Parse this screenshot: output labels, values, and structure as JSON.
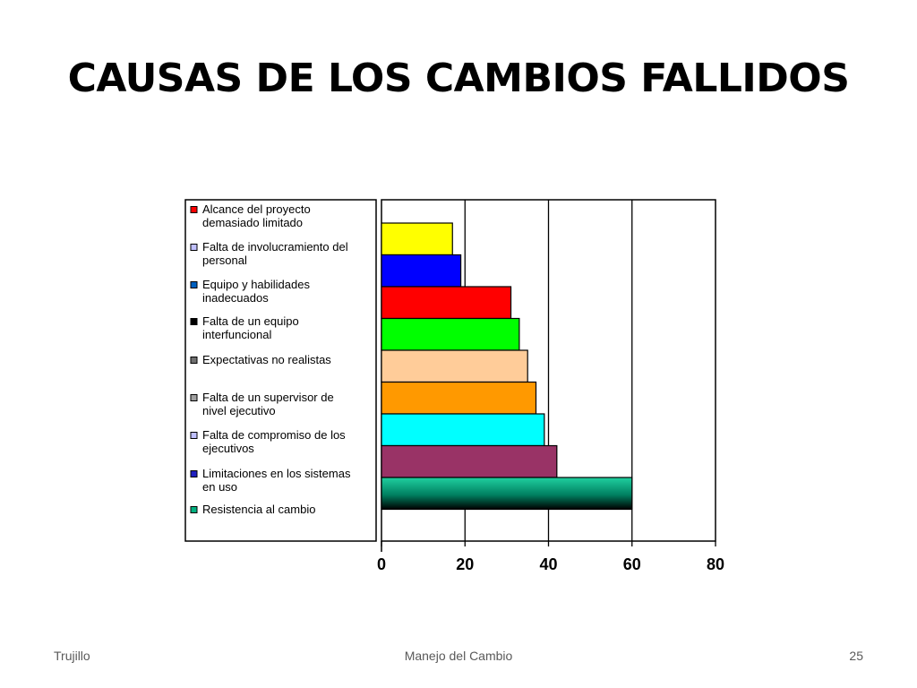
{
  "slide": {
    "title": "CAUSAS DE LOS CAMBIOS FALLIDOS"
  },
  "footer": {
    "left": "Trujillo",
    "center": "Manejo del Cambio",
    "page_number": "25"
  },
  "chart_data": {
    "type": "bar",
    "orientation": "horizontal",
    "title": "",
    "xlabel": "",
    "ylabel": "",
    "xlim": [
      0,
      80
    ],
    "xticks": [
      "0",
      "20",
      "40",
      "60",
      "80"
    ],
    "grid": true,
    "legend_position": "left",
    "legend": [
      {
        "label_lines": [
          "Alcance del proyecto",
          "demasiado limitado"
        ],
        "color": "#ff0000"
      },
      {
        "label_lines": [
          "Falta de involucramiento del",
          "personal"
        ],
        "color": "#c0c0ff"
      },
      {
        "label_lines": [
          "Equipo y habilidades",
          "inadecuados"
        ],
        "color": "#0060c0"
      },
      {
        "label_lines": [
          "Falta de un equipo",
          "interfuncional"
        ],
        "color": "#000000"
      },
      {
        "label_lines": [
          "Expectativas no realistas"
        ],
        "color": "#707070"
      },
      {
        "label_lines": [
          "Falta de un supervisor de",
          "nivel ejecutivo"
        ],
        "color": "#a0a0a0"
      },
      {
        "label_lines": [
          "Falta de compromiso de los",
          "ejecutivos"
        ],
        "color": "#c0c0ff"
      },
      {
        "label_lines": [
          "Limitaciones en los sistemas",
          "en uso"
        ],
        "color": "#2020c0"
      },
      {
        "label_lines": [
          "Resistencia al cambio"
        ],
        "color": "#00b080"
      }
    ],
    "bars": [
      {
        "value": 17,
        "color": "#ffff00"
      },
      {
        "value": 19,
        "color": "#0000ff"
      },
      {
        "value": 31,
        "color": "#ff0000"
      },
      {
        "value": 33,
        "color": "#00ff00"
      },
      {
        "value": 35,
        "color": "#ffcc99"
      },
      {
        "value": 37,
        "color": "#ff9900"
      },
      {
        "value": 39,
        "color": "#00ffff"
      },
      {
        "value": 42,
        "color": "#993366"
      },
      {
        "value": 60,
        "color": "#00a080",
        "gradient": true
      }
    ]
  }
}
